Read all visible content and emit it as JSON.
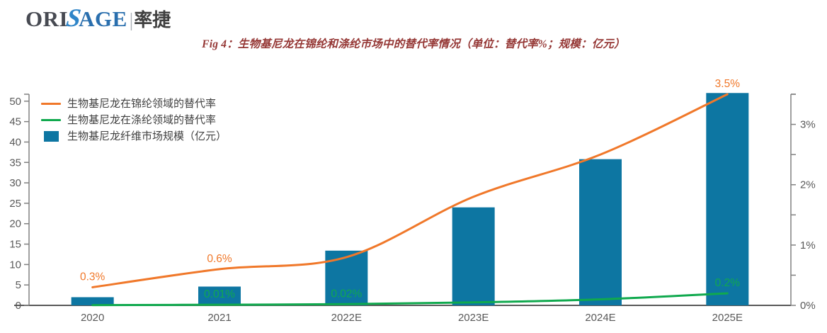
{
  "logo": {
    "ori": "ORI",
    "s": "S",
    "age": "AGE",
    "divider": "|",
    "cn": "率捷"
  },
  "title": "Fig 4：生物基尼龙在锦纶和涤纶市场中的替代率情况（单位：替代率%；规模：亿元）",
  "colors": {
    "title": "#953735",
    "bar": "#0d76a2",
    "nylon_line": "#f0782a",
    "polyester_line": "#10a94e",
    "axis": "#808080",
    "axis_text": "#595959",
    "legend_text": "#404040"
  },
  "chart_data": {
    "type": "bar+line",
    "categories": [
      "2020",
      "2021",
      "2022E",
      "2023E",
      "2024E",
      "2025E"
    ],
    "series": [
      {
        "id": "nylon-substitution-rate",
        "name": "生物基尼龙在锦纶领域的替代率",
        "type": "line",
        "axis": "right",
        "color": "#f0782a",
        "values": [
          0.3,
          0.6,
          0.8,
          1.8,
          2.5,
          3.5
        ],
        "point_labels": {
          "0": "0.3%",
          "1": "0.6%",
          "5": "3.5%"
        }
      },
      {
        "id": "polyester-substitution-rate",
        "name": "生物基尼龙在涤纶领域的替代率",
        "type": "line",
        "axis": "right",
        "color": "#10a94e",
        "values": [
          0.005,
          0.01,
          0.02,
          0.05,
          0.1,
          0.2
        ],
        "point_labels": {
          "1": "0.01%",
          "2": "0.02%",
          "5": "0.2%"
        }
      },
      {
        "id": "market-size",
        "name": "生物基尼龙纤维市场规模（亿元）",
        "type": "bar",
        "axis": "left",
        "color": "#0d76a2",
        "values": [
          2,
          4.6,
          13.4,
          24,
          35.8,
          52
        ]
      }
    ],
    "left_axis": {
      "unit": "亿元",
      "ticks": [
        0,
        5,
        10,
        15,
        20,
        25,
        30,
        35,
        40,
        45,
        50
      ],
      "max": 51.7
    },
    "right_axis": {
      "unit": "%",
      "labeled_ticks": [
        "0%",
        "1%",
        "2%",
        "3%"
      ],
      "labeled_values": [
        0,
        1,
        2,
        3
      ],
      "minor_tick_step": 0.5,
      "max": 3.5
    },
    "legend_position": "top-left",
    "grid": false
  }
}
